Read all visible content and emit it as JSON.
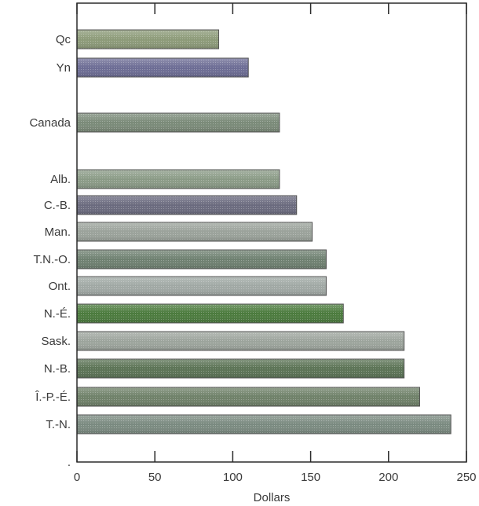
{
  "chart_data": {
    "type": "bar",
    "orientation": "horizontal",
    "xlabel": "Dollars",
    "xlim": [
      0,
      250
    ],
    "xticks": [
      0,
      50,
      100,
      150,
      200,
      250
    ],
    "grid": false,
    "categories": [
      "Qc",
      "Yn",
      "Canada",
      "Alb.",
      "C.-B.",
      "Man.",
      "T.N.-O.",
      "Ont.",
      "N.-É.",
      "Sask.",
      "N.-B.",
      "Î.-P.-É.",
      "T.-N.",
      "."
    ],
    "values": [
      91,
      110,
      130,
      130,
      141,
      151,
      160,
      160,
      171,
      210,
      210,
      220,
      240,
      null
    ],
    "colors": [
      "#8c9a78",
      "#6c6c94",
      "#7a8a78",
      "#8a9a86",
      "#6a6a7e",
      "#9aa29a",
      "#6e8070",
      "#a0a8a4",
      "#4a7a3c",
      "#9ca49c",
      "#5a7254",
      "#6e8068",
      "#7a8a80"
    ]
  }
}
